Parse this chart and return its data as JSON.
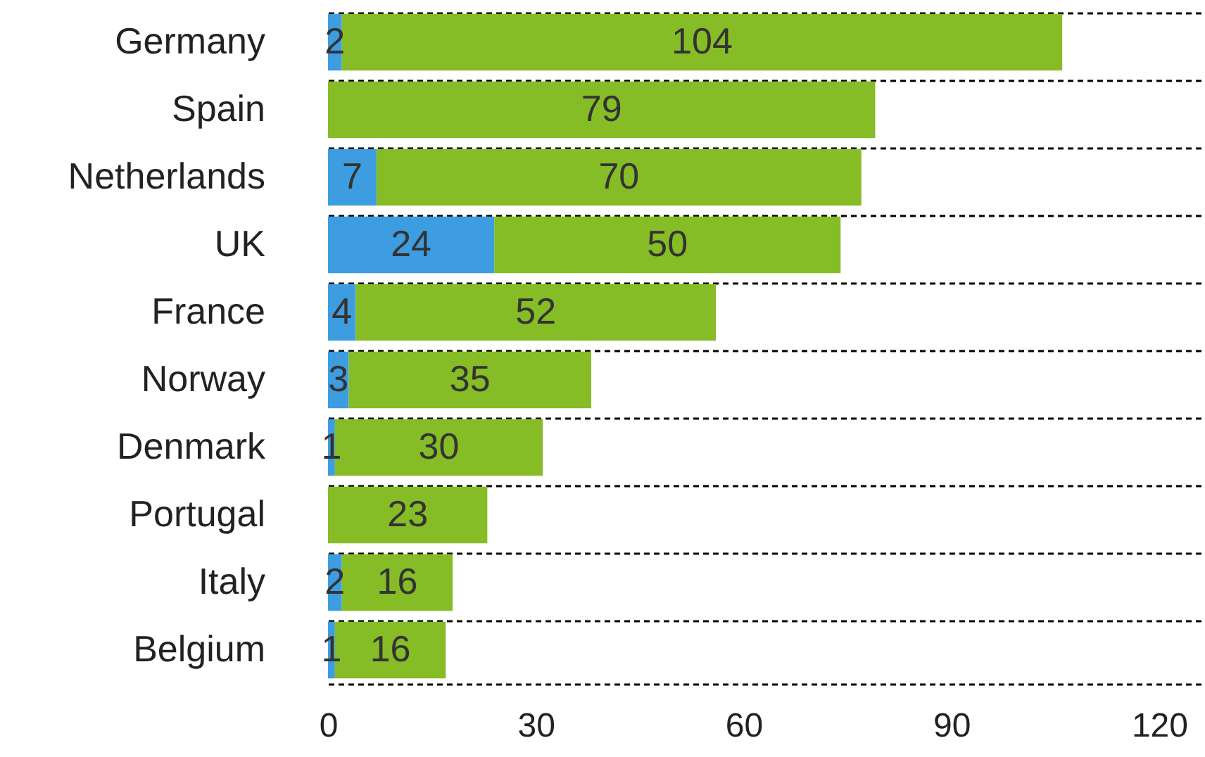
{
  "chart_data": {
    "type": "bar",
    "orientation": "horizontal",
    "stacked": true,
    "categories": [
      "Germany",
      "Spain",
      "Netherlands",
      "UK",
      "France",
      "Norway",
      "Denmark",
      "Portugal",
      "Italy",
      "Belgium"
    ],
    "series": [
      {
        "color": "#3d9de0",
        "values": [
          2,
          null,
          7,
          24,
          4,
          3,
          1,
          null,
          2,
          1
        ]
      },
      {
        "color": "#86bc25",
        "values": [
          104,
          79,
          70,
          50,
          52,
          35,
          30,
          23,
          16,
          16
        ]
      }
    ],
    "xlim": [
      0,
      126
    ],
    "xticks": [
      0,
      30,
      60,
      90,
      120
    ],
    "grid": "y",
    "data_labels": true
  }
}
